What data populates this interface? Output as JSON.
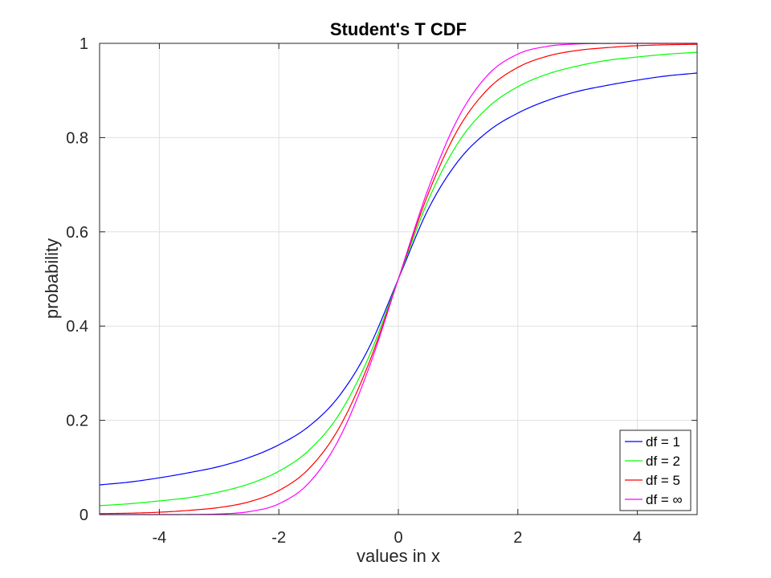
{
  "chart_data": {
    "type": "line",
    "title": "Student's T CDF",
    "xlabel": "values in x",
    "ylabel": "probability",
    "xlim": [
      -5,
      5
    ],
    "ylim": [
      0,
      1
    ],
    "xticks": [
      -4,
      -2,
      0,
      2,
      4
    ],
    "xtick_labels": [
      "-4",
      "-2",
      "0",
      "2",
      "4"
    ],
    "yticks": [
      0,
      0.2,
      0.4,
      0.6,
      0.8,
      1
    ],
    "ytick_labels": [
      "0",
      "0.2",
      "0.4",
      "0.6",
      "0.8",
      "1"
    ],
    "grid": true,
    "legend_position": "bottom-right",
    "x": [
      -5,
      -4.5,
      -4,
      -3.5,
      -3,
      -2.5,
      -2,
      -1.5,
      -1,
      -0.5,
      0,
      0.5,
      1,
      1.5,
      2,
      2.5,
      3,
      3.5,
      4,
      4.5,
      5
    ],
    "series": [
      {
        "name": "df = 1",
        "color": "#0000ff",
        "values": [
          0.063,
          0.069,
          0.078,
          0.089,
          0.102,
          0.121,
          0.148,
          0.187,
          0.25,
          0.352,
          0.5,
          0.648,
          0.75,
          0.813,
          0.852,
          0.879,
          0.898,
          0.911,
          0.922,
          0.931,
          0.937
        ]
      },
      {
        "name": "df = 2",
        "color": "#00ff00",
        "values": [
          0.019,
          0.023,
          0.029,
          0.036,
          0.048,
          0.065,
          0.092,
          0.136,
          0.211,
          0.333,
          0.5,
          0.667,
          0.789,
          0.864,
          0.908,
          0.935,
          0.952,
          0.964,
          0.971,
          0.977,
          0.981
        ]
      },
      {
        "name": "df = 5",
        "color": "#ff0000",
        "values": [
          0.002,
          0.003,
          0.005,
          0.009,
          0.015,
          0.027,
          0.051,
          0.097,
          0.182,
          0.319,
          0.5,
          0.681,
          0.818,
          0.903,
          0.949,
          0.973,
          0.985,
          0.991,
          0.995,
          0.997,
          0.998
        ]
      },
      {
        "name": "df = ∞",
        "color": "#ff00ff",
        "values": [
          0.0,
          0.0,
          0.0,
          0.0002,
          0.0013,
          0.0062,
          0.0228,
          0.0668,
          0.1587,
          0.3085,
          0.5,
          0.6915,
          0.8413,
          0.9332,
          0.9772,
          0.9938,
          0.9987,
          0.9998,
          1.0,
          1.0,
          1.0
        ]
      }
    ]
  }
}
